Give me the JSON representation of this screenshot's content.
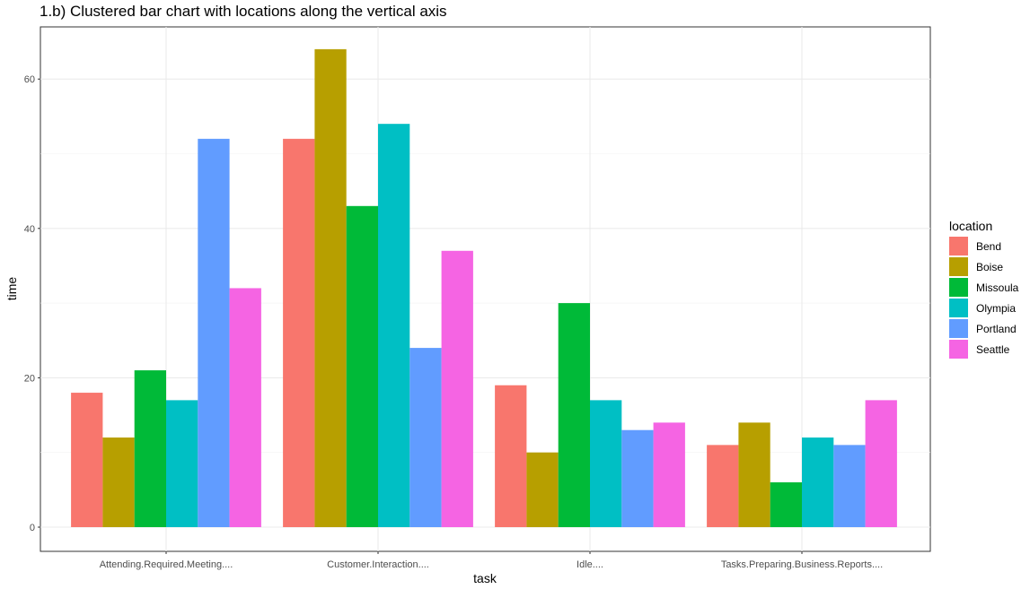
{
  "chart_data": {
    "type": "bar",
    "title": "1.b) Clustered bar chart with locations along the vertical axis",
    "xlabel": "task",
    "ylabel": "time",
    "categories": [
      "Attending.Required.Meeting....",
      "Customer.Interaction....",
      "Idle....",
      "Tasks.Preparing.Business.Reports...."
    ],
    "ylim": [
      0,
      65
    ],
    "yticks": [
      0,
      20,
      40,
      60
    ],
    "grid": true,
    "legend_title": "location",
    "legend_position": "right",
    "series": [
      {
        "name": "Bend",
        "color": "#F8766D",
        "values": [
          18,
          52,
          19,
          11
        ]
      },
      {
        "name": "Boise",
        "color": "#B79F00",
        "values": [
          12,
          64,
          10,
          14
        ]
      },
      {
        "name": "Missoula",
        "color": "#00BA38",
        "values": [
          21,
          43,
          30,
          6
        ]
      },
      {
        "name": "Olympia",
        "color": "#00BFC4",
        "values": [
          17,
          54,
          17,
          12
        ]
      },
      {
        "name": "Portland",
        "color": "#619CFF",
        "values": [
          52,
          24,
          13,
          11
        ]
      },
      {
        "name": "Seattle",
        "color": "#F564E3",
        "values": [
          32,
          37,
          14,
          17
        ]
      }
    ]
  }
}
